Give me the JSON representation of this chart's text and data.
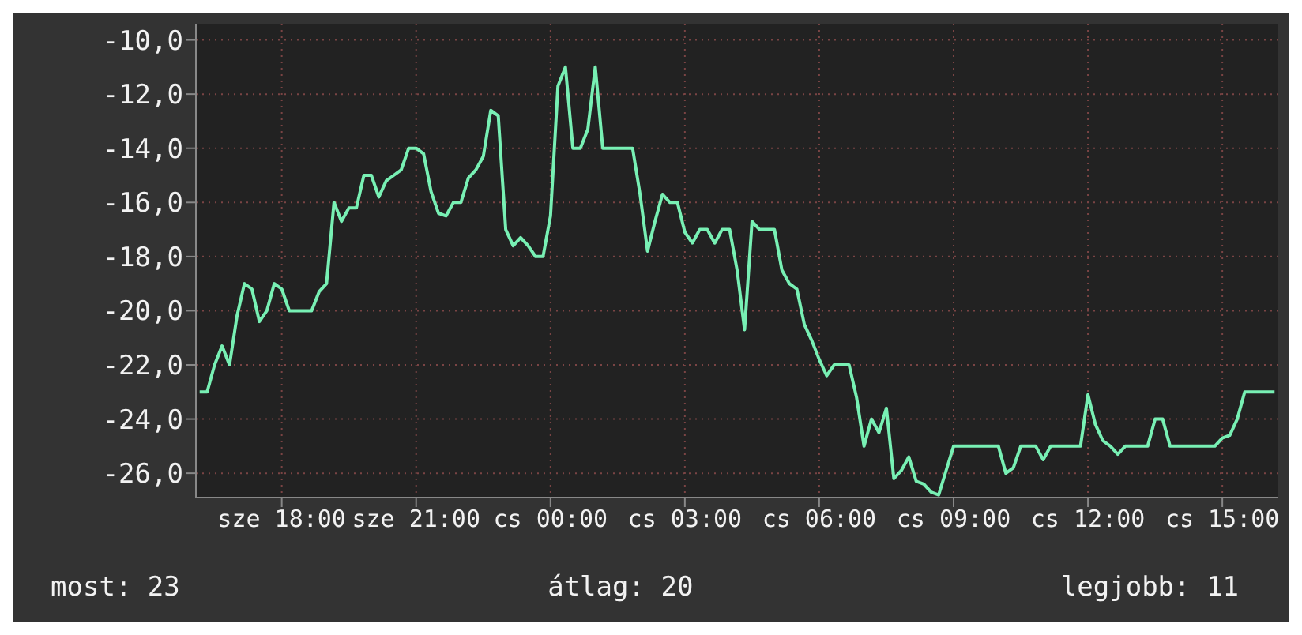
{
  "chart_data": {
    "type": "line",
    "color": "#78f0b4",
    "marker": "none",
    "grid": true,
    "categories": [
      null,
      null,
      null,
      null,
      null,
      null,
      null,
      null,
      null,
      null,
      null,
      "sze 18:00",
      null,
      null,
      null,
      null,
      null,
      null,
      null,
      null,
      null,
      null,
      null,
      null,
      null,
      null,
      null,
      null,
      null,
      "sze 21:00",
      null,
      null,
      null,
      null,
      null,
      null,
      null,
      null,
      null,
      null,
      null,
      null,
      null,
      null,
      null,
      null,
      null,
      "cs 00:00",
      null,
      null,
      null,
      null,
      null,
      null,
      null,
      null,
      null,
      null,
      null,
      null,
      null,
      null,
      null,
      null,
      null,
      "cs 03:00",
      null,
      null,
      null,
      null,
      null,
      null,
      null,
      null,
      null,
      null,
      null,
      null,
      null,
      null,
      null,
      null,
      null,
      "cs 06:00",
      null,
      null,
      null,
      null,
      null,
      null,
      null,
      null,
      null,
      null,
      null,
      null,
      null,
      null,
      null,
      null,
      null,
      "cs 09:00",
      null,
      null,
      null,
      null,
      null,
      null,
      null,
      null,
      null,
      null,
      null,
      null,
      null,
      null,
      null,
      null,
      null,
      "cs 12:00",
      null,
      null,
      null,
      null,
      null,
      null,
      null,
      null,
      null,
      null,
      null,
      null,
      null,
      null,
      null,
      null,
      null,
      "cs 15:00",
      null,
      null,
      null,
      null,
      null,
      null,
      null
    ],
    "values": [
      -23,
      -23,
      -22,
      -21.3,
      -22,
      -20.2,
      -19,
      -19.2,
      -20.4,
      -20,
      -19,
      -19.2,
      -20,
      -20,
      -20,
      -20,
      -19.3,
      -19,
      -16,
      -16.7,
      -16.2,
      -16.2,
      -15,
      -15,
      -15.8,
      -15.2,
      -15,
      -14.8,
      -14,
      -14,
      -14.2,
      -15.6,
      -16.4,
      -16.5,
      -16,
      -16,
      -15.1,
      -14.8,
      -14.3,
      -12.6,
      -12.8,
      -17,
      -17.6,
      -17.3,
      -17.6,
      -18,
      -18,
      -16.5,
      -11.7,
      -11,
      -14,
      -14,
      -13.3,
      -11,
      -14,
      -14,
      -14,
      -14,
      -14,
      -15.7,
      -17.8,
      -16.7,
      -15.7,
      -16,
      -16,
      -17.1,
      -17.5,
      -17,
      -17,
      -17.5,
      -17,
      -17,
      -18.5,
      -20.7,
      -16.7,
      -17,
      -17,
      -17,
      -18.5,
      -19,
      -19.2,
      -20.5,
      -21.1,
      -21.8,
      -22.4,
      -22,
      -22,
      -22,
      -23.2,
      -25,
      -24,
      -24.5,
      -23.6,
      -26.2,
      -25.9,
      -25.4,
      -26.3,
      -26.4,
      -26.7,
      -26.8,
      -25.9,
      -25,
      -25,
      -25,
      -25,
      -25,
      -25,
      -25,
      -26,
      -25.8,
      -25,
      -25,
      -25,
      -25.5,
      -25,
      -25,
      -25,
      -25,
      -25,
      -23.1,
      -24.2,
      -24.8,
      -25,
      -25.3,
      -25,
      -25,
      -25,
      -25,
      -24,
      -24,
      -25,
      -25,
      -25,
      -25,
      -25,
      -25,
      -25,
      -24.7,
      -24.6,
      -24,
      -23,
      -23,
      -23,
      -23,
      -23
    ],
    "ylim": [
      -26.9,
      -9.4
    ],
    "yticks": [
      {
        "value": -26,
        "label": "-26,0"
      },
      {
        "value": -24,
        "label": "-24,0"
      },
      {
        "value": -22,
        "label": "-22,0"
      },
      {
        "value": -20,
        "label": "-20,0"
      },
      {
        "value": -18,
        "label": "-18,0"
      },
      {
        "value": -16,
        "label": "-16,0"
      },
      {
        "value": -14,
        "label": "-14,0"
      },
      {
        "value": -12,
        "label": "-12,0"
      },
      {
        "value": -10,
        "label": "-10,0"
      }
    ],
    "annotations": [
      "most: 23",
      "átlag: 20",
      "legjobb: 11"
    ]
  }
}
